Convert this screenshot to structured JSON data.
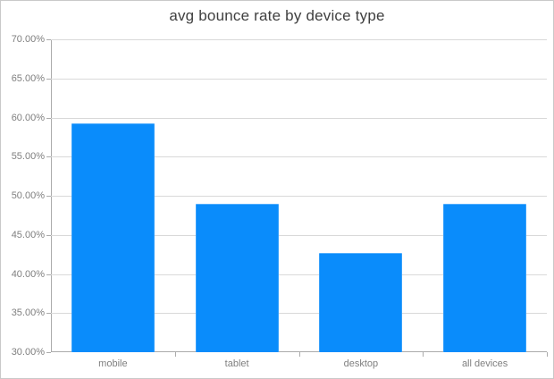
{
  "chart_data": {
    "type": "bar",
    "title": "avg bounce rate by device type",
    "categories": [
      "mobile",
      "tablet",
      "desktop",
      "all devices"
    ],
    "values": [
      59.3,
      49.0,
      42.7,
      49.0
    ],
    "value_unit": "%",
    "xlabel": "",
    "ylabel": "",
    "ylim": [
      30,
      70
    ],
    "y_tick_step": 5,
    "y_tick_labels": [
      "70.00%",
      "65.00%",
      "60.00%",
      "55.00%",
      "50.00%",
      "45.00%",
      "40.00%",
      "35.00%",
      "30.00%"
    ],
    "grid": true,
    "legend_position": "none",
    "bar_color": "#0A8CFB"
  },
  "colors": {
    "bar": "#0A8CFB",
    "gridline": "#d9d9d9",
    "axis": "#ababab",
    "tick_label": "#7f7f7f",
    "title": "#3f3f3f",
    "frame_border": "#c9c9c9",
    "background": "#ffffff"
  }
}
